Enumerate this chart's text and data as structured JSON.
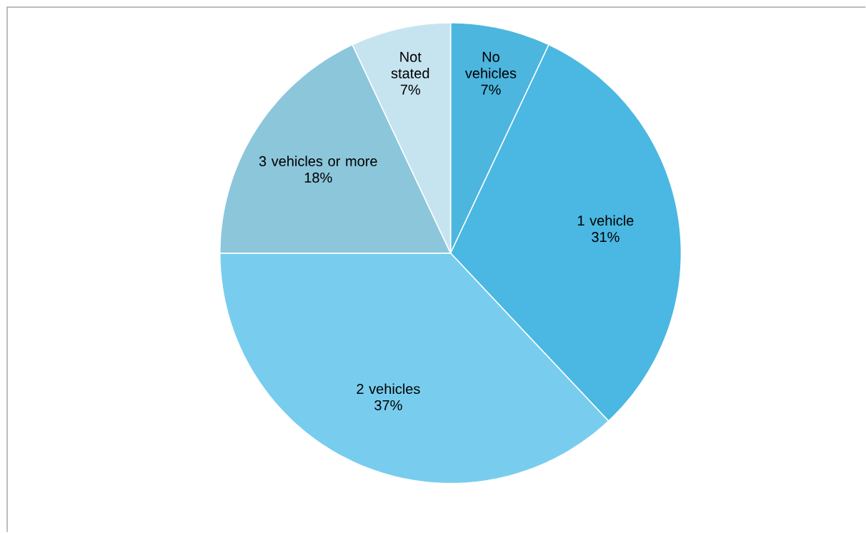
{
  "chart_data": {
    "type": "pie",
    "categories": [
      "No vehicles",
      "1 vehicle",
      "2 vehicles",
      "3 vehicles or more",
      "Not stated"
    ],
    "values": [
      7,
      31,
      37,
      18,
      7
    ],
    "value_labels": [
      "7%",
      "31%",
      "37%",
      "18%",
      "7%"
    ],
    "colors": [
      "#4cb6de",
      "#4ab8e2",
      "#78cdee",
      "#8cc6db",
      "#c6e4f0"
    ]
  }
}
